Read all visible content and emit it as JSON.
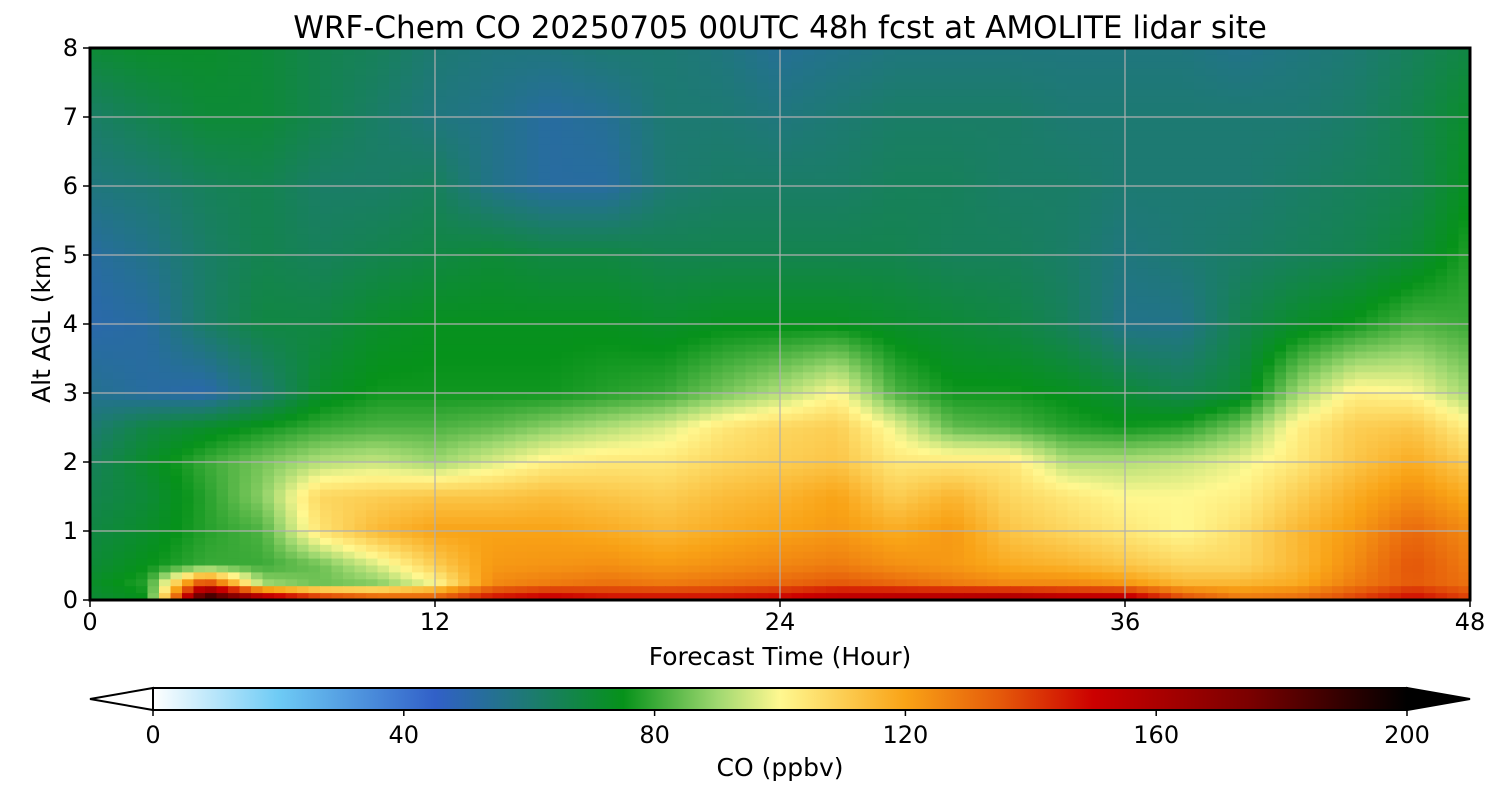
{
  "chart_data": {
    "type": "heatmap",
    "title": "WRF-Chem CO  20250705 00UTC 48h fcst at AMOLITE lidar site",
    "xlabel": "Forecast Time (Hour)",
    "ylabel": "Alt AGL (km)",
    "xlim": [
      0,
      48
    ],
    "ylim": [
      0,
      8
    ],
    "x_ticks": [
      "0",
      "12",
      "24",
      "36",
      "48"
    ],
    "y_ticks": [
      "0",
      "1",
      "2",
      "3",
      "4",
      "5",
      "6",
      "7",
      "8"
    ],
    "grid": true,
    "colorbar": {
      "label": "CO  (ppbv)",
      "range": [
        0,
        200
      ],
      "ticks": [
        "0",
        "40",
        "80",
        "120",
        "160",
        "200"
      ],
      "extend": "both",
      "orientation": "horizontal",
      "colors": [
        {
          "v": 0,
          "c": "#ffffff"
        },
        {
          "v": 20,
          "c": "#6ecbf5"
        },
        {
          "v": 45,
          "c": "#3160c8"
        },
        {
          "v": 60,
          "c": "#1d7a72"
        },
        {
          "v": 75,
          "c": "#06921a"
        },
        {
          "v": 90,
          "c": "#9fd870"
        },
        {
          "v": 100,
          "c": "#fff890"
        },
        {
          "v": 120,
          "c": "#f9a316"
        },
        {
          "v": 135,
          "c": "#e55a0a"
        },
        {
          "v": 150,
          "c": "#cc0000"
        },
        {
          "v": 175,
          "c": "#7a0000"
        },
        {
          "v": 200,
          "c": "#000000"
        }
      ]
    },
    "x_hours": [
      0,
      2,
      4,
      6,
      8,
      10,
      12,
      14,
      16,
      18,
      20,
      22,
      24,
      26,
      28,
      30,
      32,
      34,
      36,
      38,
      40,
      42,
      44,
      46,
      48
    ],
    "y_km": [
      0,
      0.25,
      0.5,
      1,
      1.5,
      2,
      2.5,
      3,
      4,
      5,
      6,
      7,
      8
    ],
    "values": [
      [
        70,
        75,
        200,
        170,
        150,
        140,
        138,
        150,
        155,
        150,
        150,
        150,
        152,
        158,
        160,
        162,
        165,
        160,
        160,
        140,
        130,
        132,
        140,
        150,
        140
      ],
      [
        72,
        78,
        140,
        90,
        85,
        88,
        100,
        125,
        128,
        130,
        128,
        130,
        132,
        135,
        132,
        128,
        125,
        125,
        122,
        115,
        115,
        118,
        128,
        135,
        130
      ],
      [
        70,
        75,
        80,
        80,
        85,
        96,
        110,
        122,
        123,
        124,
        122,
        124,
        126,
        128,
        124,
        122,
        118,
        116,
        112,
        108,
        108,
        115,
        125,
        136,
        128
      ],
      [
        68,
        72,
        78,
        82,
        105,
        115,
        120,
        120,
        120,
        118,
        115,
        118,
        120,
        122,
        118,
        122,
        112,
        108,
        104,
        100,
        106,
        115,
        122,
        132,
        125
      ],
      [
        66,
        70,
        78,
        88,
        108,
        110,
        112,
        112,
        114,
        112,
        110,
        114,
        116,
        120,
        110,
        116,
        108,
        104,
        100,
        100,
        102,
        110,
        118,
        125,
        118
      ],
      [
        64,
        72,
        80,
        86,
        92,
        94,
        90,
        96,
        102,
        104,
        104,
        108,
        110,
        112,
        104,
        104,
        104,
        92,
        92,
        94,
        98,
        104,
        112,
        118,
        110
      ],
      [
        60,
        68,
        72,
        76,
        80,
        82,
        82,
        84,
        88,
        92,
        96,
        104,
        108,
        110,
        98,
        84,
        82,
        78,
        76,
        78,
        86,
        102,
        110,
        112,
        102
      ],
      [
        55,
        52,
        50,
        60,
        72,
        76,
        76,
        76,
        76,
        78,
        80,
        86,
        92,
        100,
        82,
        76,
        76,
        74,
        70,
        66,
        70,
        90,
        102,
        100,
        90
      ],
      [
        50,
        52,
        62,
        68,
        68,
        72,
        74,
        74,
        74,
        74,
        72,
        74,
        74,
        74,
        72,
        70,
        68,
        64,
        56,
        56,
        66,
        72,
        76,
        82,
        80
      ],
      [
        52,
        56,
        62,
        66,
        64,
        66,
        68,
        70,
        68,
        68,
        66,
        66,
        66,
        66,
        66,
        64,
        64,
        62,
        58,
        60,
        62,
        64,
        66,
        70,
        78
      ],
      [
        58,
        60,
        64,
        66,
        62,
        62,
        64,
        56,
        52,
        52,
        60,
        62,
        62,
        62,
        64,
        64,
        62,
        62,
        60,
        60,
        60,
        62,
        64,
        66,
        74
      ],
      [
        62,
        66,
        70,
        70,
        66,
        62,
        58,
        56,
        52,
        54,
        60,
        60,
        58,
        60,
        62,
        62,
        62,
        60,
        60,
        60,
        60,
        60,
        62,
        66,
        72
      ],
      [
        70,
        72,
        72,
        70,
        66,
        64,
        60,
        58,
        58,
        60,
        60,
        58,
        54,
        56,
        58,
        58,
        58,
        58,
        58,
        58,
        56,
        58,
        60,
        64,
        68
      ]
    ]
  }
}
